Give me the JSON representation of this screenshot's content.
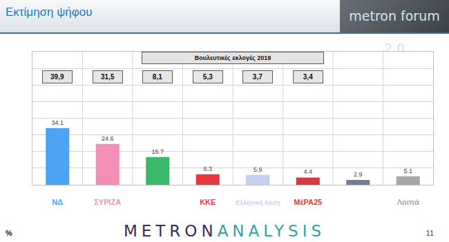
{
  "header": {
    "title": "Εκτίμηση ψήφου",
    "logo_text": "metron forum 2.0"
  },
  "chart_data": {
    "type": "bar",
    "categories": [
      "ΝΔ",
      "ΣΥΡΙΖΑ",
      null,
      "ΚΚΕ",
      "Ελληνική Λύση",
      "ΜέΡΑ25",
      null,
      "Λοιπά"
    ],
    "values": [
      34.1,
      24.6,
      16.7,
      6.3,
      5.9,
      4.4,
      2.9,
      5.1
    ],
    "colors": [
      "#4da3f5",
      "#f38fb7",
      "#3cb86a",
      "#e8383d",
      "#c5d0ec",
      "#d43c42",
      "#6e7f96",
      "#a6a6a6"
    ],
    "data_labels": true,
    "ylim": [
      0,
      80
    ],
    "yticks": [
      0,
      10,
      20,
      30,
      40,
      50,
      60,
      70,
      80
    ],
    "grid": true,
    "tick_labels": "x",
    "reference": {
      "title": "Βουλευτικές εκλογές 2019",
      "values": [
        39.9,
        31.5,
        8.1,
        5.3,
        3.7,
        3.4,
        null,
        null
      ],
      "value_labels": [
        "39,9",
        "31,5",
        "8,1",
        "5,3",
        "3,7",
        "3,4",
        null,
        null
      ]
    }
  },
  "footer": {
    "unit": "%",
    "brand": [
      "METRON",
      "ANALYSIS"
    ],
    "page": "11"
  }
}
